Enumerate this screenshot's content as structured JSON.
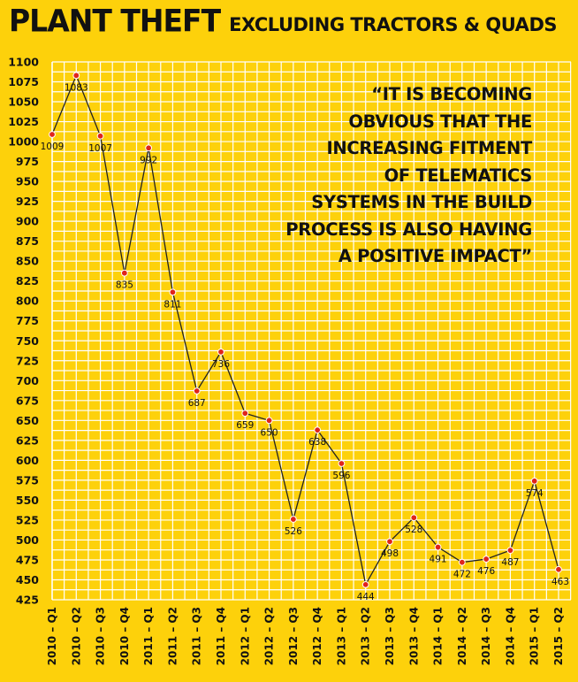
{
  "header": {
    "title": "PLANT THEFT",
    "subtitle": "EXCLUDING TRACTORS & QUADS"
  },
  "quote": {
    "lines": [
      "“IT IS BECOMING",
      "OBVIOUS THAT THE",
      "INCREASING FITMENT",
      "OF TELEMATICS",
      "SYSTEMS IN THE BUILD",
      "PROCESS IS ALSO HAVING",
      "A POSITIVE IMPACT”"
    ]
  },
  "colors": {
    "background": "#fdd10b",
    "grid": "#ffffff",
    "line": "#222222",
    "point": "#e0241b"
  },
  "chart_data": {
    "type": "line",
    "title": "PLANT THEFT",
    "subtitle": "EXCLUDING TRACTORS & QUADS",
    "xlabel": "",
    "ylabel": "",
    "ylim": [
      425,
      1100
    ],
    "grid": true,
    "categories": [
      "2010 – Q1",
      "2010 – Q2",
      "2010 – Q3",
      "2010 – Q4",
      "2011 – Q1",
      "2011 – Q2",
      "2011 – Q3",
      "2011 – Q4",
      "2012 – Q1",
      "2012 – Q2",
      "2012 – Q3",
      "2012 – Q4",
      "2013 – Q1",
      "2013 – Q2",
      "2013 – Q3",
      "2013 – Q4",
      "2014 – Q1",
      "2014 – Q2",
      "2014 – Q3",
      "2014 – Q4",
      "2015 – Q1",
      "2015 – Q2"
    ],
    "values": [
      1009,
      1083,
      1007,
      835,
      992,
      811,
      687,
      736,
      659,
      650,
      526,
      638,
      596,
      444,
      498,
      528,
      491,
      472,
      476,
      487,
      574,
      463
    ],
    "yticks": [
      425,
      450,
      475,
      500,
      525,
      550,
      575,
      600,
      625,
      650,
      675,
      700,
      725,
      750,
      775,
      800,
      825,
      850,
      875,
      900,
      925,
      950,
      975,
      1000,
      1025,
      1050,
      1075,
      1100
    ]
  }
}
